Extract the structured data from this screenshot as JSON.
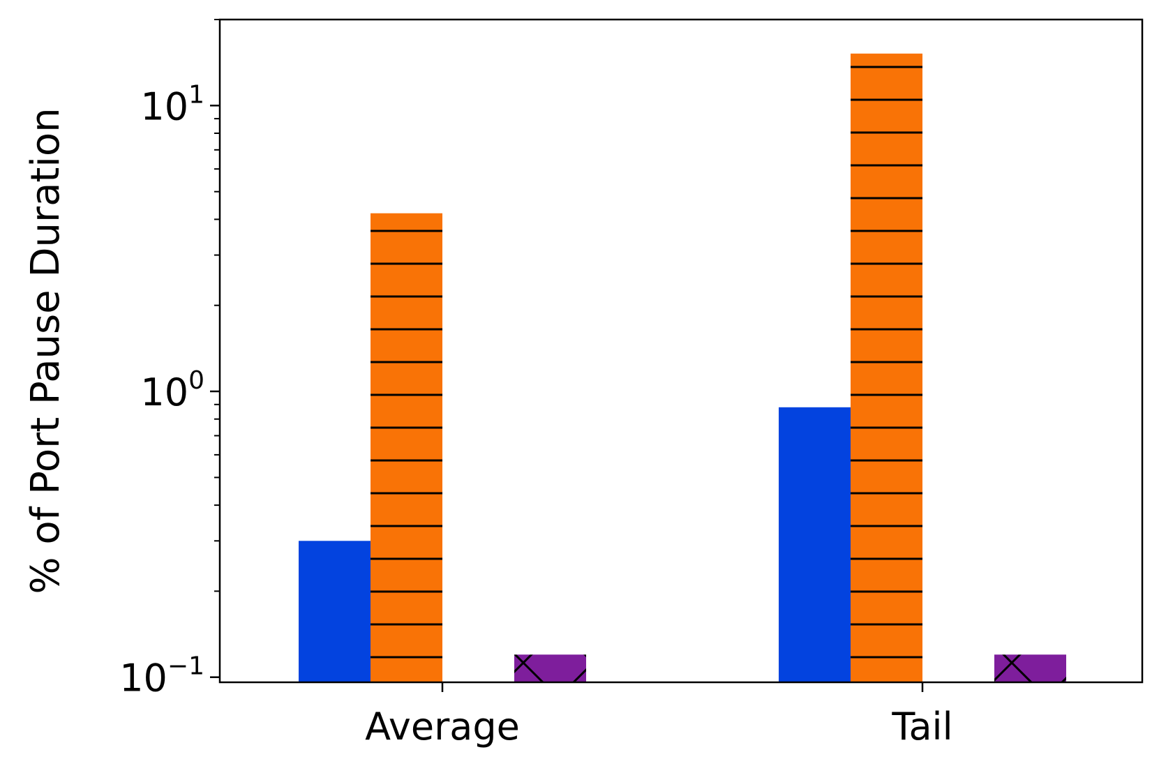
{
  "chart_data": {
    "type": "bar",
    "title": "",
    "xlabel": "",
    "ylabel": "% of Port Pause Duration",
    "yscale": "log",
    "ylim": [
      0.096,
      20
    ],
    "y_ticks": [
      {
        "value": 0.1,
        "base": "10",
        "exp": "−1"
      },
      {
        "value": 1,
        "base": "10",
        "exp": "0"
      },
      {
        "value": 10,
        "base": "10",
        "exp": "1"
      }
    ],
    "categories": [
      "Average",
      "Tail"
    ],
    "series": [
      {
        "color": "#0343df",
        "hatch": "none",
        "values": [
          0.3,
          0.88
        ]
      },
      {
        "color": "#f97306",
        "hatch": "horizontal",
        "values": [
          4.2,
          15.2
        ]
      },
      {
        "color": "#ffffff",
        "hatch": "none",
        "values": [
          null,
          null
        ]
      },
      {
        "color": "#7e1e9c",
        "hatch": "cross",
        "values": [
          0.12,
          0.12
        ]
      }
    ],
    "grid": false,
    "legend": "none"
  }
}
